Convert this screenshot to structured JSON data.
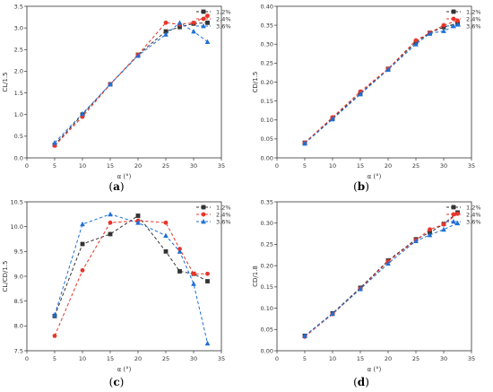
{
  "colors": {
    "1.2%": "#333333",
    "2.4%": "#e8352b",
    "3.6%": "#1f6fd6",
    "axis": "#333333"
  },
  "chart_data": [
    {
      "type": "line",
      "panel_label": "a",
      "xlabel": "α (°)",
      "ylabel": "CL/1.5",
      "xlim": [
        0,
        35
      ],
      "ylim": [
        0,
        3.5
      ],
      "xticks": [
        "0",
        "5",
        "10",
        "15",
        "20",
        "25",
        "30",
        "35"
      ],
      "yticks": [
        "0.0",
        "0.5",
        "1.0",
        "1.5",
        "2.0",
        "2.5",
        "3.0",
        "3.5"
      ],
      "legend": "top-right",
      "x": [
        5,
        10,
        15,
        20,
        25,
        27.5,
        30,
        32.5
      ],
      "series": [
        {
          "name": "1.2%",
          "marker": "square",
          "values": [
            0.3,
            1.0,
            1.7,
            2.38,
            2.92,
            3.02,
            3.1,
            3.12
          ]
        },
        {
          "name": "2.4%",
          "marker": "circle",
          "values": [
            0.28,
            0.95,
            1.7,
            2.38,
            3.12,
            3.08,
            3.12,
            3.28
          ]
        },
        {
          "name": "3.6%",
          "marker": "triangle",
          "values": [
            0.35,
            1.02,
            1.7,
            2.36,
            2.85,
            3.12,
            2.92,
            2.68
          ]
        }
      ]
    },
    {
      "type": "line",
      "panel_label": "b",
      "xlabel": "α (°)",
      "ylabel": "CD/1.5",
      "xlim": [
        0,
        35
      ],
      "ylim": [
        0,
        0.4
      ],
      "xticks": [
        "0",
        "5",
        "10",
        "15",
        "20",
        "25",
        "30",
        "35"
      ],
      "yticks": [
        "0.00",
        "0.05",
        "0.10",
        "0.15",
        "0.20",
        "0.25",
        "0.30",
        "0.35",
        "0.40"
      ],
      "legend": "top-right",
      "x": [
        5,
        10,
        15,
        20,
        25,
        27.5,
        30,
        32.5
      ],
      "series": [
        {
          "name": "1.2%",
          "marker": "square",
          "values": [
            0.04,
            0.105,
            0.17,
            0.235,
            0.305,
            0.33,
            0.345,
            0.355
          ]
        },
        {
          "name": "2.4%",
          "marker": "circle",
          "values": [
            0.04,
            0.107,
            0.175,
            0.235,
            0.31,
            0.33,
            0.35,
            0.362
          ]
        },
        {
          "name": "3.6%",
          "marker": "triangle",
          "values": [
            0.038,
            0.102,
            0.168,
            0.233,
            0.3,
            0.328,
            0.335,
            0.352
          ]
        }
      ]
    },
    {
      "type": "line",
      "panel_label": "c",
      "xlabel": "α (°)",
      "ylabel": "CL/CD/1.5",
      "xlim": [
        0,
        35
      ],
      "ylim": [
        7.5,
        10.5
      ],
      "xticks": [
        "0",
        "5",
        "10",
        "15",
        "20",
        "25",
        "30",
        "35"
      ],
      "yticks": [
        "7.5",
        "8.0",
        "8.5",
        "9.0",
        "9.5",
        "10.0",
        "10.5"
      ],
      "legend": "top-right",
      "x": [
        5,
        10,
        15,
        20,
        25,
        27.5,
        30,
        32.5
      ],
      "series": [
        {
          "name": "1.2%",
          "marker": "square",
          "values": [
            8.2,
            9.65,
            9.85,
            10.22,
            9.5,
            9.1,
            9.05,
            8.9
          ]
        },
        {
          "name": "2.4%",
          "marker": "circle",
          "values": [
            7.8,
            9.12,
            10.08,
            10.12,
            10.08,
            9.55,
            9.05,
            9.05
          ]
        },
        {
          "name": "3.6%",
          "marker": "triangle",
          "values": [
            8.22,
            10.05,
            10.25,
            10.08,
            9.82,
            9.5,
            8.85,
            7.65
          ]
        }
      ]
    },
    {
      "type": "line",
      "panel_label": "d",
      "xlabel": "α (°)",
      "ylabel": "CD/1.8",
      "xlim": [
        0,
        35
      ],
      "ylim": [
        0,
        0.35
      ],
      "xticks": [
        "0",
        "5",
        "10",
        "15",
        "20",
        "25",
        "30",
        "35"
      ],
      "yticks": [
        "0.00",
        "0.05",
        "0.10",
        "0.15",
        "0.20",
        "0.25",
        "0.30",
        "0.35"
      ],
      "legend": "top-right",
      "x": [
        5,
        10,
        15,
        20,
        25,
        27.5,
        30,
        32.5
      ],
      "series": [
        {
          "name": "1.2%",
          "marker": "square",
          "values": [
            0.035,
            0.088,
            0.148,
            0.212,
            0.262,
            0.278,
            0.298,
            0.325
          ]
        },
        {
          "name": "2.4%",
          "marker": "circle",
          "values": [
            0.033,
            0.086,
            0.146,
            0.21,
            0.26,
            0.285,
            0.297,
            0.322
          ]
        },
        {
          "name": "3.6%",
          "marker": "triangle",
          "values": [
            0.035,
            0.087,
            0.145,
            0.205,
            0.258,
            0.272,
            0.285,
            0.3
          ]
        }
      ]
    }
  ]
}
